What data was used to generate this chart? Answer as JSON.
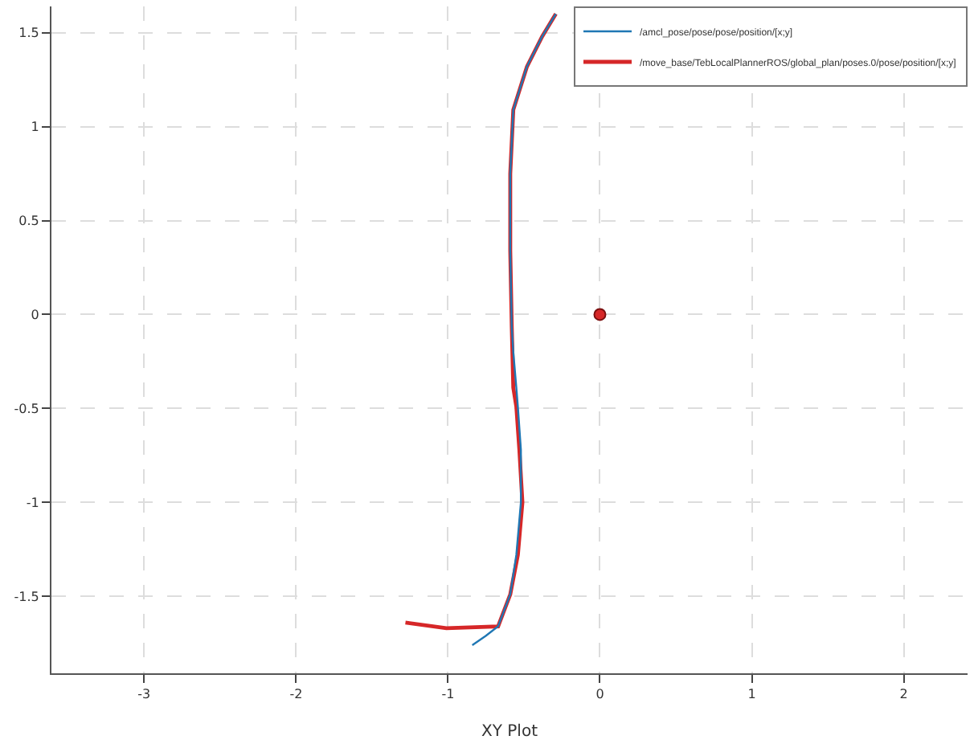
{
  "chart_data": {
    "type": "line",
    "xlabel": "XY Plot",
    "xlim": [
      -3.61,
      2.42
    ],
    "ylim": [
      -1.91,
      1.64
    ],
    "xticks": [
      -3,
      -2,
      -1,
      0,
      1,
      2
    ],
    "yticks": [
      -1.5,
      -1,
      -0.5,
      0,
      0.5,
      1,
      1.5
    ],
    "grid": true,
    "legend": "top right",
    "marker": "none",
    "line_style": "solid",
    "series": [
      {
        "name": "/amcl_pose/pose/pose/position/[x;y]",
        "color": "#1f77b4",
        "x": [
          -0.84,
          -0.75,
          -0.67,
          -0.59,
          -0.55,
          -0.52,
          -0.52,
          -0.54,
          -0.55,
          -0.57,
          -0.58,
          -0.59,
          -0.59,
          -0.57,
          -0.48,
          -0.38,
          -0.29
        ],
        "values": [
          -1.76,
          -1.71,
          -1.66,
          -1.49,
          -1.28,
          -1.0,
          -0.72,
          -0.49,
          -0.39,
          -0.2,
          -0.07,
          0.34,
          0.75,
          1.09,
          1.32,
          1.48,
          1.6
        ]
      },
      {
        "name": "/move_base/TebLocalPlannerROS/global_plan/poses.0/pose/position/[x;y]",
        "color": "#d62728",
        "x": [
          -1.28,
          -1.01,
          -0.67,
          -0.59,
          -0.54,
          -0.51,
          -0.53,
          -0.55,
          -0.57,
          -0.58,
          -0.59,
          -0.59,
          -0.57,
          -0.48,
          -0.38,
          -0.29
        ],
        "values": [
          -1.64,
          -1.67,
          -1.66,
          -1.49,
          -1.28,
          -1.0,
          -0.72,
          -0.49,
          -0.39,
          -0.07,
          0.34,
          0.75,
          1.09,
          1.32,
          1.48,
          1.6
        ]
      },
      {
        "type": "scatter",
        "marker": "circle",
        "color": "#d62728",
        "x": [
          0
        ],
        "values": [
          0
        ]
      }
    ]
  }
}
